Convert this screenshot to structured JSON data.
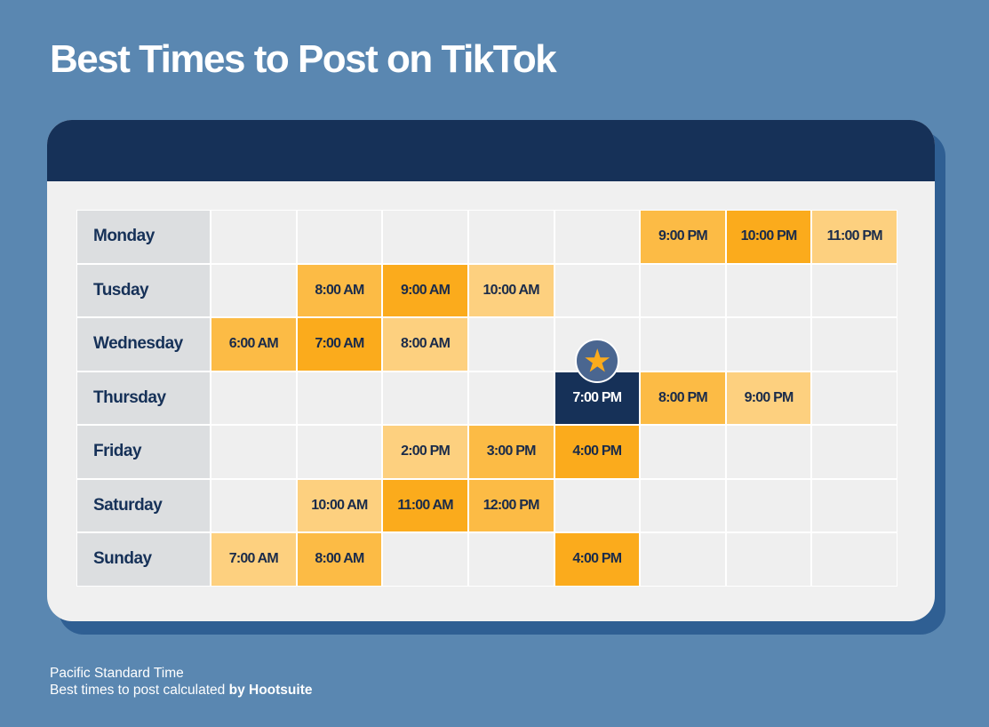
{
  "title": "Best Times to Post on TikTok",
  "footer": {
    "line1": "Pacific Standard Time",
    "line2_prefix": "Best times to post calculated ",
    "line2_brand": "by Hootsuite"
  },
  "colors": {
    "level1": "#fdd07f",
    "level2": "#fcbb45",
    "level3": "#fbab1c",
    "best": "#163158"
  },
  "chart_data": {
    "type": "heatmap",
    "title": "Best Times to Post on TikTok",
    "rows": [
      {
        "day": "Monday",
        "cells": [
          {
            "col": 5,
            "label": "9:00 PM",
            "level": 2
          },
          {
            "col": 6,
            "label": "10:00 PM",
            "level": 3
          },
          {
            "col": 7,
            "label": "11:00 PM",
            "level": 1
          }
        ]
      },
      {
        "day": "Tusday",
        "cells": [
          {
            "col": 1,
            "label": "8:00 AM",
            "level": 2
          },
          {
            "col": 2,
            "label": "9:00 AM",
            "level": 3
          },
          {
            "col": 3,
            "label": "10:00 AM",
            "level": 1
          }
        ]
      },
      {
        "day": "Wednesday",
        "cells": [
          {
            "col": 0,
            "label": "6:00 AM",
            "level": 2
          },
          {
            "col": 1,
            "label": "7:00 AM",
            "level": 3
          },
          {
            "col": 2,
            "label": "8:00 AM",
            "level": 1
          }
        ]
      },
      {
        "day": "Thursday",
        "cells": [
          {
            "col": 4,
            "label": "7:00 PM",
            "level": "best"
          },
          {
            "col": 5,
            "label": "8:00 PM",
            "level": 2
          },
          {
            "col": 6,
            "label": "9:00 PM",
            "level": 1
          }
        ]
      },
      {
        "day": "Friday",
        "cells": [
          {
            "col": 2,
            "label": "2:00 PM",
            "level": 1
          },
          {
            "col": 3,
            "label": "3:00 PM",
            "level": 2
          },
          {
            "col": 4,
            "label": "4:00 PM",
            "level": 3
          }
        ]
      },
      {
        "day": "Saturday",
        "cells": [
          {
            "col": 1,
            "label": "10:00 AM",
            "level": 1
          },
          {
            "col": 2,
            "label": "11:00 AM",
            "level": 3
          },
          {
            "col": 3,
            "label": "12:00 PM",
            "level": 2
          }
        ]
      },
      {
        "day": "Sunday",
        "cells": [
          {
            "col": 0,
            "label": "7:00 AM",
            "level": 1
          },
          {
            "col": 1,
            "label": "8:00 AM",
            "level": 2
          },
          {
            "col": 4,
            "label": "4:00 PM",
            "level": 3
          }
        ]
      }
    ],
    "best_icon": "star-icon"
  }
}
